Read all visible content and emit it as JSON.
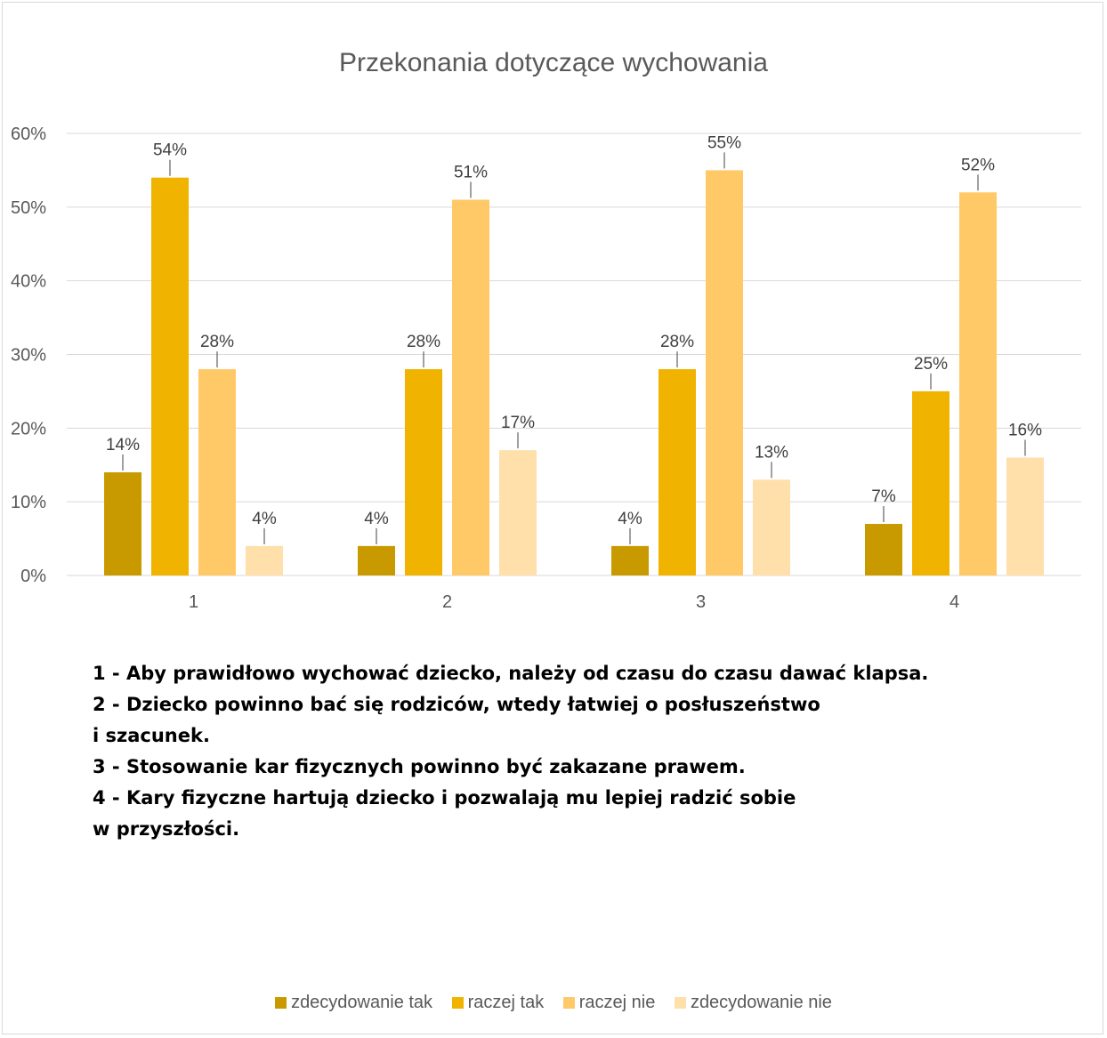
{
  "chart_data": {
    "type": "bar",
    "title": "Przekonania dotyczące wychowania",
    "categories": [
      "1",
      "2",
      "3",
      "4"
    ],
    "ylim": [
      0,
      60
    ],
    "yticks": [
      "0%",
      "10%",
      "20%",
      "30%",
      "40%",
      "50%",
      "60%"
    ],
    "ytick_values": [
      0,
      10,
      20,
      30,
      40,
      50,
      60
    ],
    "grid": true,
    "legend_position": "bottom",
    "series": [
      {
        "name": "zdecydowanie tak",
        "color": "#C99A00",
        "values": [
          14,
          4,
          4,
          7
        ],
        "labels": [
          "14%",
          "4%",
          "4%",
          "7%"
        ]
      },
      {
        "name": "raczej tak",
        "color": "#EFB300",
        "values": [
          54,
          28,
          28,
          25
        ],
        "labels": [
          "54%",
          "28%",
          "28%",
          "25%"
        ]
      },
      {
        "name": "raczej nie",
        "color": "#FFC967",
        "values": [
          28,
          51,
          55,
          52
        ],
        "labels": [
          "28%",
          "51%",
          "55%",
          "52%"
        ]
      },
      {
        "name": "zdecydowanie nie",
        "color": "#FFDFAA",
        "values": [
          4,
          17,
          13,
          16
        ],
        "labels": [
          "4%",
          "17%",
          "13%",
          "16%"
        ]
      }
    ]
  },
  "notes": [
    "1 - Aby prawidłowo wychować dziecko, należy od czasu do czasu dawać klapsa.",
    "2 - Dziecko powinno bać się rodziców, wtedy łatwiej o posłuszeństwo",
    "i szacunek.",
    "3 - Stosowanie kar fizycznych powinno być zakazane prawem.",
    "4 - Kary fizyczne hartują dziecko i pozwalają mu lepiej radzić sobie",
    "w przyszłości."
  ]
}
